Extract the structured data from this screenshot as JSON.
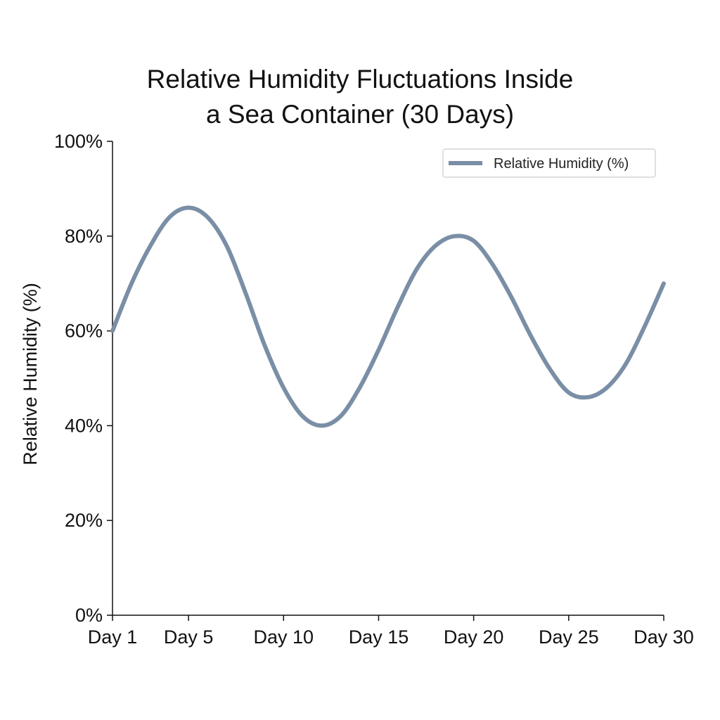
{
  "chart_data": {
    "type": "line",
    "title_lines": [
      "Relative Humidity Fluctuations Inside",
      "a Sea Container (30 Days)"
    ],
    "xlabel": "",
    "ylabel": "Relative Humidity (%)",
    "x_ticks": [
      1,
      5,
      10,
      15,
      20,
      25,
      30
    ],
    "x_tick_labels": [
      "Day 1",
      "Day 5",
      "Day 10",
      "Day 15",
      "Day 20",
      "Day 25",
      "Day 30"
    ],
    "y_ticks": [
      0,
      20,
      40,
      60,
      80,
      100
    ],
    "y_tick_labels": [
      "0%",
      "20%",
      "40%",
      "60%",
      "80%",
      "100%"
    ],
    "xlim": [
      1,
      30
    ],
    "ylim": [
      0,
      100
    ],
    "grid": false,
    "legend_position": "top-right",
    "series": [
      {
        "name": "Relative Humidity (%)",
        "color": "#7a8fa6",
        "x": [
          1,
          2,
          3,
          4,
          5,
          6,
          7,
          8,
          9,
          10,
          11,
          12,
          13,
          14,
          15,
          16,
          17,
          18,
          19,
          20,
          21,
          22,
          23,
          24,
          25,
          26,
          27,
          28,
          29,
          30
        ],
        "values": [
          60,
          70,
          78,
          84,
          86,
          84,
          78,
          68,
          57,
          48,
          42,
          40,
          42,
          48,
          56,
          65,
          73,
          78,
          80,
          79,
          74,
          67,
          59,
          52,
          47,
          46,
          48,
          53,
          61,
          70
        ]
      }
    ]
  }
}
